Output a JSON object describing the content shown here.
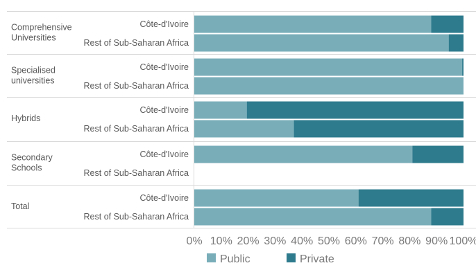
{
  "chart_data": {
    "type": "bar",
    "orientation": "horizontal",
    "stacked": "percent",
    "groups": [
      {
        "label": "Comprehensive Universities",
        "rows": [
          {
            "label": "Côte-d'Ivoire",
            "values": [
              88,
              12
            ]
          },
          {
            "label": "Rest of Sub-Saharan Africa",
            "values": [
              94.5,
              5.5
            ]
          }
        ]
      },
      {
        "label": "Specialised universities",
        "rows": [
          {
            "label": "Côte-d'Ivoire",
            "values": [
              99.5,
              0.5
            ]
          },
          {
            "label": "Rest of Sub-Saharan Africa",
            "values": [
              100,
              0
            ]
          }
        ]
      },
      {
        "label": "Hybrids",
        "rows": [
          {
            "label": "Côte-d'Ivoire",
            "values": [
              19.5,
              80.5
            ]
          },
          {
            "label": "Rest of Sub-Saharan Africa",
            "values": [
              37,
              63
            ]
          }
        ]
      },
      {
        "label": "Secondary Schools",
        "rows": [
          {
            "label": "Côte-d'Ivoire",
            "values": [
              81,
              19
            ]
          },
          {
            "label": "Rest of Sub-Saharan Africa",
            "values": [
              null,
              null
            ]
          }
        ]
      },
      {
        "label": "Total",
        "rows": [
          {
            "label": "Côte-d'Ivoire",
            "values": [
              61,
              39
            ]
          },
          {
            "label": "Rest of Sub-Saharan Africa",
            "values": [
              88,
              12
            ]
          }
        ]
      }
    ],
    "series": [
      {
        "name": "Public",
        "color": "#79aeb9"
      },
      {
        "name": "Private",
        "color": "#2e7b8d"
      }
    ],
    "xlim": [
      0,
      100
    ],
    "x_ticks": [
      "0%",
      "10%",
      "20%",
      "30%",
      "40%",
      "50%",
      "60%",
      "70%",
      "80%",
      "90%",
      "100%"
    ],
    "legend_position": "bottom",
    "grid": false
  }
}
